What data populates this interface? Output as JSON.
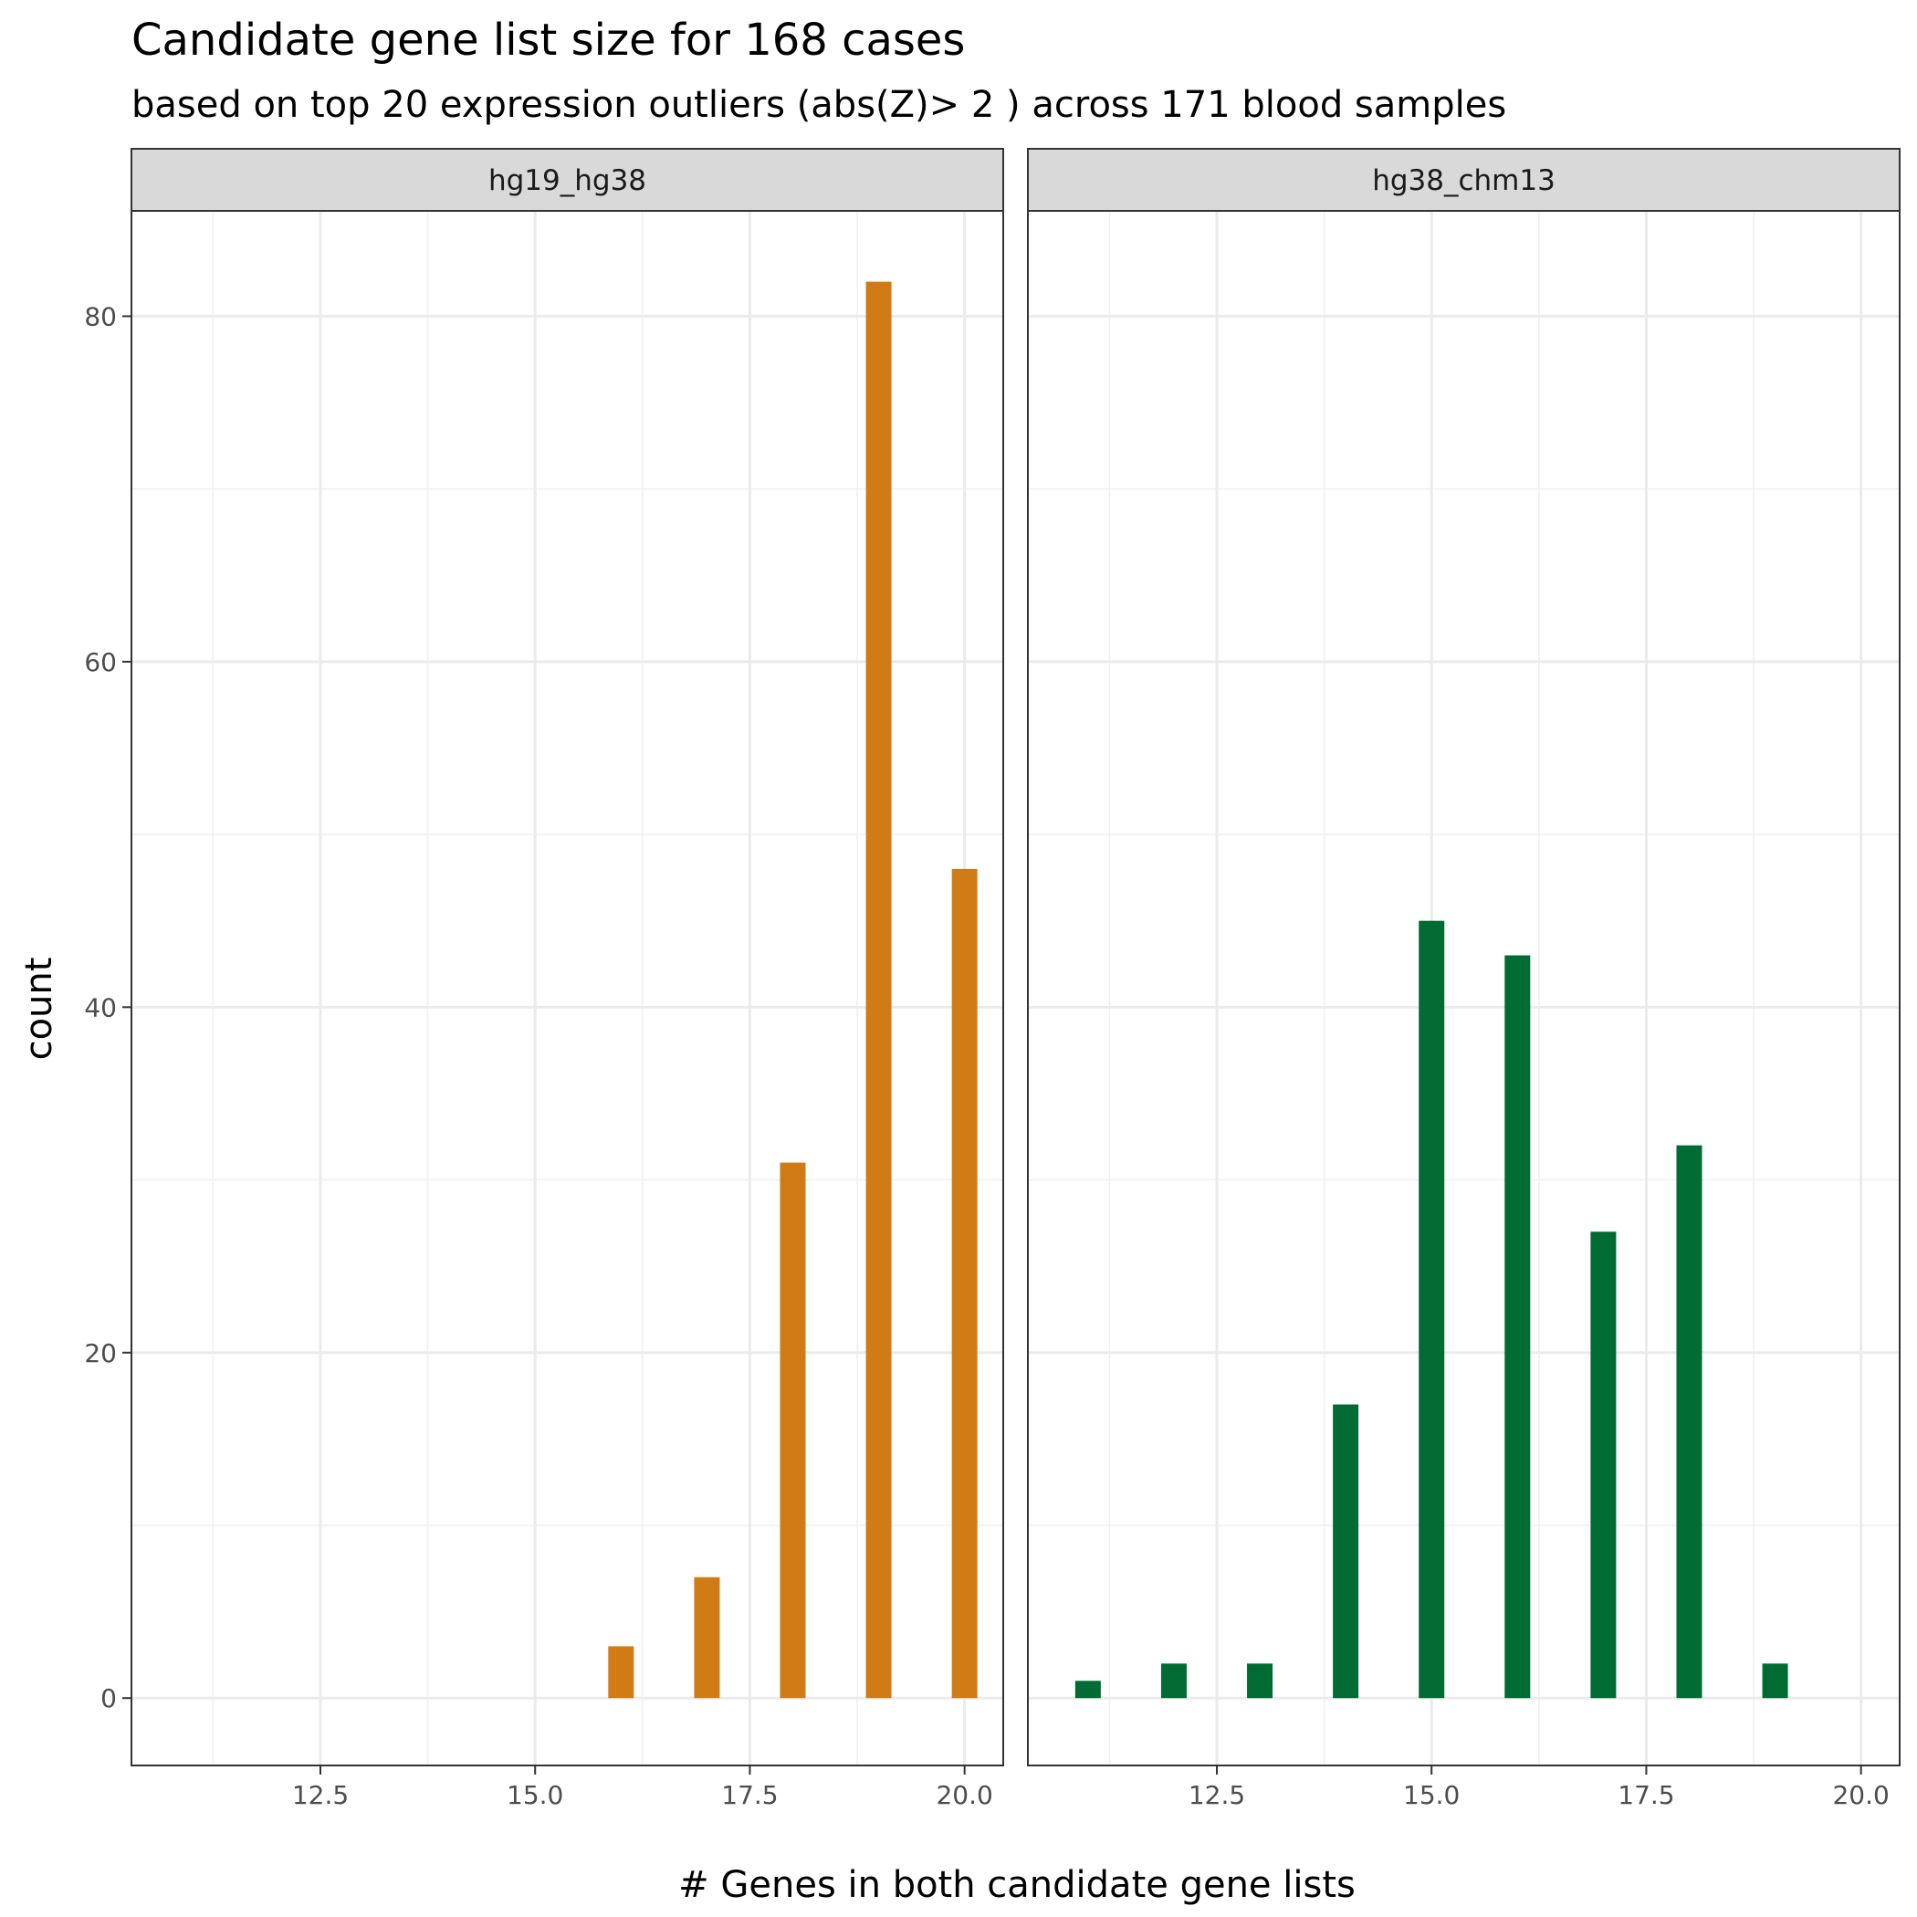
{
  "chart_data": {
    "type": "bar",
    "title": "Candidate gene list size for 168 cases",
    "subtitle": "based on top 20 expression outliers (abs(Z)> 2 ) across 171 blood samples",
    "xlabel": "# Genes in both candidate gene lists",
    "ylabel": "count",
    "xlim": [
      10.3,
      20.45
    ],
    "ylim": [
      -3.9,
      86.1
    ],
    "x_ticks": [
      "12.5",
      "15.0",
      "17.5",
      "20.0"
    ],
    "y_ticks": [
      "0",
      "20",
      "40",
      "60",
      "80"
    ],
    "grid": true,
    "legend": "none",
    "facets": [
      {
        "label": "hg19_hg38",
        "color": "#D17B16",
        "x": [
          16.0,
          17.0,
          18.0,
          19.0,
          20.0
        ],
        "values": [
          3,
          7,
          31,
          82,
          48
        ]
      },
      {
        "label": "hg38_chm13",
        "color": "#006B33",
        "x": [
          11.0,
          12.0,
          13.0,
          14.0,
          15.0,
          16.0,
          17.0,
          18.0,
          19.0
        ],
        "values": [
          1,
          2,
          2,
          17,
          45,
          43,
          27,
          32,
          2
        ]
      }
    ]
  }
}
